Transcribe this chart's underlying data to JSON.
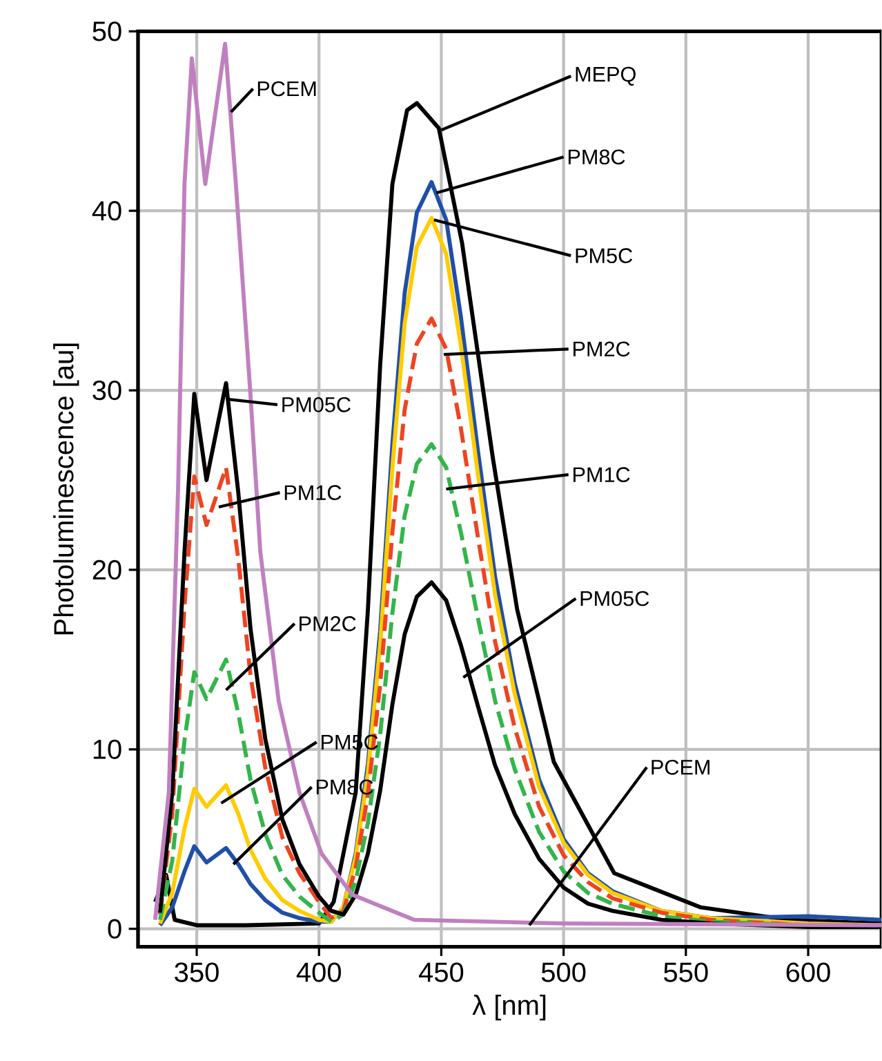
{
  "chart_data": {
    "type": "line",
    "xlabel": "λ [nm]",
    "ylabel": "Photoluminescence [au]",
    "xlim": [
      326,
      630
    ],
    "ylim": [
      -1,
      50
    ],
    "xticks": [
      350,
      400,
      450,
      500,
      550,
      600
    ],
    "yticks": [
      0,
      10,
      20,
      30,
      40,
      50
    ],
    "grid": true,
    "marker": "none",
    "line_style": "solid",
    "x": [
      335,
      340,
      345,
      349,
      354,
      362,
      367,
      372,
      378,
      385,
      392,
      400,
      405,
      410,
      415,
      420,
      425,
      430,
      435,
      440,
      446,
      452,
      458,
      465,
      472,
      480,
      490,
      500,
      510,
      520,
      540,
      560,
      600,
      630
    ],
    "series": [
      {
        "color": "#000000",
        "x": [
          333,
          337.5,
          341,
          350,
          370,
          400,
          406,
          415,
          420,
          425,
          430,
          436,
          440,
          449,
          458.5,
          471,
          481,
          496,
          520.7,
          556,
          592,
          630
        ],
        "values": [
          1.5,
          3,
          0.5,
          0.2,
          0.2,
          0.3,
          1.5,
          7.6,
          17.8,
          31.4,
          41.5,
          45.6,
          46,
          44.6,
          38.2,
          26.3,
          17.8,
          9.3,
          3.1,
          1.2,
          0.5,
          0.3
        ]
      },
      {
        "color": "#1f4fa8",
        "values": [
          0.2,
          1.2,
          3.2,
          4.6,
          3.7,
          4.5,
          3.6,
          2.5,
          1.6,
          0.9,
          0.6,
          0.4,
          0.4,
          1.2,
          4.2,
          9.2,
          16.6,
          27,
          35.4,
          39.9,
          41.6,
          39.5,
          34.1,
          26.6,
          19.6,
          13.7,
          8.3,
          5,
          3.1,
          2.1,
          1,
          0.6,
          0.7,
          0.5
        ]
      },
      {
        "color": "#ffcc00",
        "values": [
          0.3,
          2,
          5.6,
          7.8,
          6.8,
          8,
          6.4,
          4.4,
          2.8,
          1.6,
          1,
          0.5,
          0.4,
          1.2,
          4,
          8.7,
          15.8,
          25.7,
          33.7,
          38,
          39.6,
          37.6,
          32.5,
          25.3,
          18.6,
          13.1,
          7.9,
          4.8,
          3,
          2,
          1,
          0.6,
          0.3,
          0.2
        ]
      },
      {
        "color": "#ee4422",
        "line_style": "dashed",
        "values": [
          0.8,
          6.4,
          18,
          25.2,
          22.5,
          25.7,
          20.6,
          14.1,
          9,
          5.1,
          3.1,
          1.5,
          0.6,
          1,
          3.4,
          7.5,
          13.6,
          22.1,
          28.9,
          32.6,
          34,
          32.3,
          27.9,
          21.8,
          16,
          11.2,
          6.8,
          4.1,
          2.6,
          1.7,
          0.9,
          0.5,
          0.2,
          0.2
        ]
      },
      {
        "color": "#33b54a",
        "line_style": "dashed",
        "values": [
          0.5,
          3.8,
          10.5,
          14.3,
          12.8,
          15,
          12,
          8.3,
          5.3,
          3,
          1.8,
          0.9,
          0.4,
          0.8,
          2.7,
          5.9,
          10.8,
          17.6,
          23,
          25.9,
          27,
          25.7,
          22.1,
          17.3,
          12.7,
          8.9,
          5.4,
          3.2,
          2,
          1.4,
          0.7,
          0.4,
          0.2,
          0.1
        ]
      },
      {
        "color": "#000000",
        "values": [
          0.9,
          7.6,
          21,
          29.8,
          25,
          30.4,
          24.3,
          16.7,
          10.6,
          6.1,
          3.6,
          1.8,
          1,
          0.8,
          1.9,
          4.2,
          7.7,
          12.5,
          16.4,
          18.5,
          19.3,
          18.3,
          15.8,
          12.4,
          9.1,
          6.4,
          3.9,
          2.3,
          1.4,
          1,
          0.5,
          0.3,
          0.1,
          0.1
        ]
      },
      {
        "color": "#c080c0",
        "x": [
          333,
          338.6,
          342.4,
          345,
          348,
          353.5,
          361.6,
          366,
          372,
          376,
          383.5,
          392,
          401,
          413.6,
          439,
          500,
          630
        ],
        "values": [
          0.5,
          7.6,
          24.6,
          41.5,
          48.5,
          41.5,
          49.3,
          41.5,
          29.7,
          21,
          12.7,
          7.6,
          4.2,
          1.9,
          0.5,
          0.3,
          0.2
        ]
      }
    ],
    "annotations": [
      {
        "text": "PCEM",
        "x": 364,
        "y": 45.5
      },
      {
        "text": "PM05C",
        "x": 363,
        "y": 29.5
      },
      {
        "text": "PM1C",
        "x": 359,
        "y": 23.5
      },
      {
        "text": "PM2C",
        "x": 362,
        "y": 13.3
      },
      {
        "text": "PM5C",
        "x": 360,
        "y": 7
      },
      {
        "text": "PM8C",
        "x": 365,
        "y": 3.6
      },
      {
        "text": "MEPQ",
        "x": 450,
        "y": 44.5
      },
      {
        "text": "PM8C",
        "x": 448,
        "y": 41
      },
      {
        "text": "PM5C",
        "x": 447,
        "y": 39.5
      },
      {
        "text": "PM2C",
        "x": 451,
        "y": 32
      },
      {
        "text": "PM1C",
        "x": 452,
        "y": 24.5
      },
      {
        "text": "PM05C",
        "x": 459,
        "y": 14
      },
      {
        "text": "PCEM",
        "x": 486,
        "y": 0.2
      }
    ]
  }
}
